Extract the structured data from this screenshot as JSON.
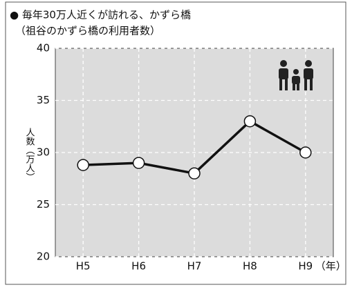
{
  "chart_data": {
    "type": "line",
    "title": "● 毎年30万人近くが訪れる、かずら橋",
    "subtitle": "（祖谷のかずら橋の利用者数）",
    "y_label": "人数（万人）",
    "x_label": "（年）",
    "categories": [
      "H5",
      "H6",
      "H7",
      "H8",
      "H9"
    ],
    "values": [
      28.8,
      29.0,
      28.0,
      33.0,
      30.0
    ],
    "color": "#111111",
    "ylim": [
      20,
      40
    ],
    "yticks": [
      20,
      25,
      30,
      35,
      40
    ],
    "grid": true
  }
}
